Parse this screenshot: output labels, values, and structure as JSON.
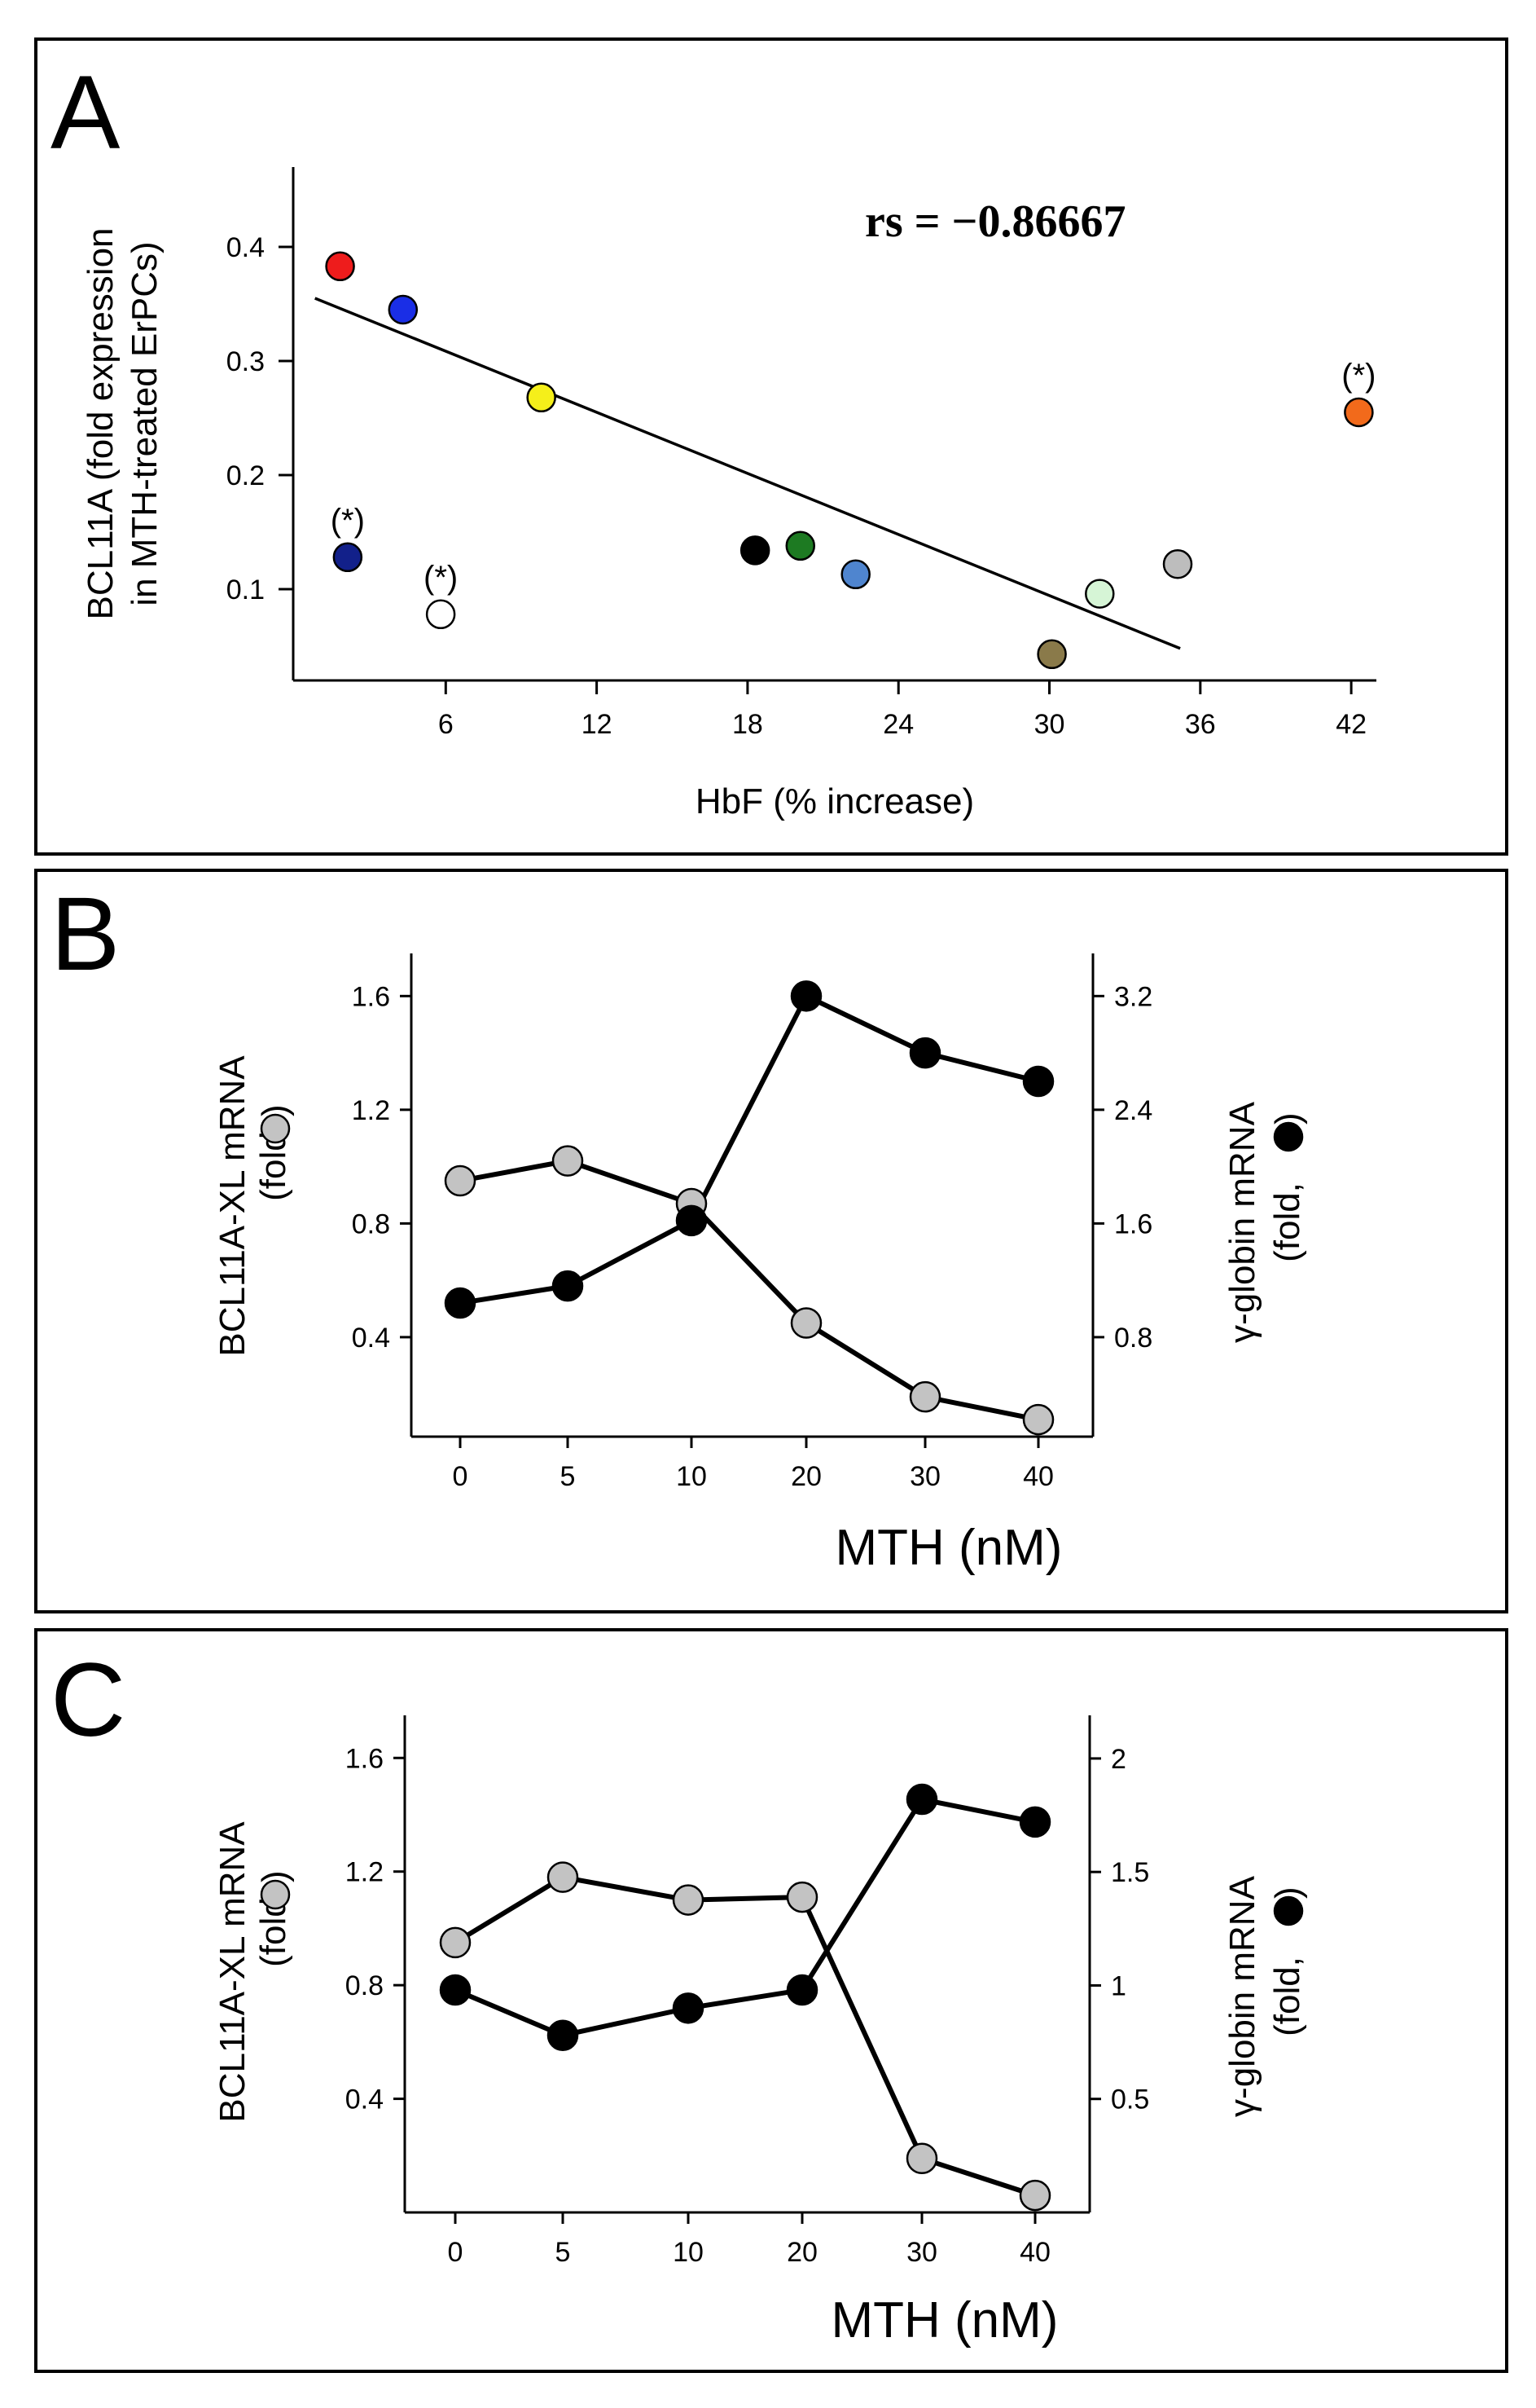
{
  "chart_data": [
    {
      "panel": "A",
      "type": "scatter",
      "xlabel": "HbF (% increase)",
      "ylabel_lines": [
        "BCL11A (fold expression",
        "in MTH-treated ErPCs)"
      ],
      "annotation": "rs = −0.86667",
      "xlim": [
        0,
        43
      ],
      "ylim": [
        0.02,
        0.47
      ],
      "xticks": [
        6,
        12,
        18,
        24,
        30,
        36,
        42
      ],
      "yticks": [
        0.1,
        0.2,
        0.3,
        0.4
      ],
      "ytick_labels": [
        "0.1",
        "0.2",
        "0.3",
        "0.4"
      ],
      "outlier_label": "(*)",
      "points": [
        {
          "x": 1.8,
          "y": 0.383,
          "color": "#ee1c1c",
          "outlier": false
        },
        {
          "x": 4.3,
          "y": 0.345,
          "color": "#1a2ee6",
          "outlier": false
        },
        {
          "x": 9.8,
          "y": 0.268,
          "color": "#f5ef1a",
          "outlier": false
        },
        {
          "x": 2.1,
          "y": 0.128,
          "color": "#12208a",
          "outlier": true
        },
        {
          "x": 5.8,
          "y": 0.078,
          "color": "#ffffff",
          "outlier": true
        },
        {
          "x": 18.3,
          "y": 0.134,
          "color": "#000000",
          "outlier": false
        },
        {
          "x": 20.1,
          "y": 0.138,
          "color": "#1d7a22",
          "outlier": false
        },
        {
          "x": 22.3,
          "y": 0.113,
          "color": "#4f85cf",
          "outlier": false
        },
        {
          "x": 30.1,
          "y": 0.043,
          "color": "#8a7a4a",
          "outlier": false
        },
        {
          "x": 32.0,
          "y": 0.096,
          "color": "#d6f5d6",
          "outlier": false
        },
        {
          "x": 35.1,
          "y": 0.122,
          "color": "#bdbdbd",
          "outlier": false
        },
        {
          "x": 42.3,
          "y": 0.255,
          "color": "#f26a1b",
          "outlier": true
        }
      ],
      "regression": {
        "x_start": 0.8,
        "y_start": 0.355,
        "x_end": 35.2,
        "y_end": 0.048
      }
    },
    {
      "panel": "B",
      "type": "line",
      "xlabel": "MTH (nM)",
      "ylabel_left": "BCL11A-XL mRNA",
      "ylabel_left_sub": "(fold,",
      "ylabel_right": "γ-globin mRNA",
      "ylabel_right_sub": "(fold,",
      "categories": [
        "0",
        "5",
        "10",
        "20",
        "30",
        "40"
      ],
      "left_ylim": [
        0.05,
        1.75
      ],
      "left_ticks": [
        0.4,
        0.8,
        1.2,
        1.6
      ],
      "left_tick_labels": [
        "0.4",
        "0.8",
        "1.2",
        "1.6"
      ],
      "right_ylim": [
        0.1,
        3.5
      ],
      "right_ticks": [
        0.8,
        1.6,
        2.4,
        3.2
      ],
      "right_tick_labels": [
        "0.8",
        "1.6",
        "2.4",
        "3.2"
      ],
      "series": [
        {
          "name": "BCL11A-XL mRNA",
          "axis": "left",
          "marker": "#c3c3c3",
          "values": [
            0.95,
            1.02,
            0.87,
            0.45,
            0.19,
            0.11
          ]
        },
        {
          "name": "γ-globin mRNA",
          "axis": "right",
          "marker": "#000000",
          "values": [
            1.04,
            1.16,
            1.62,
            3.2,
            2.8,
            2.6
          ]
        }
      ]
    },
    {
      "panel": "C",
      "type": "line",
      "xlabel": "MTH (nM)",
      "ylabel_left": "BCL11A-XL mRNA",
      "ylabel_left_sub": "(fold,",
      "ylabel_right": "γ-globin mRNA",
      "ylabel_right_sub": "(fold,",
      "categories": [
        "0",
        "5",
        "10",
        "20",
        "30",
        "40"
      ],
      "left_ylim": [
        0.0,
        1.75
      ],
      "left_ticks": [
        0.4,
        0.8,
        1.2,
        1.6
      ],
      "left_tick_labels": [
        "0.4",
        "0.8",
        "1.2",
        "1.6"
      ],
      "right_ylim": [
        0.0,
        2.19
      ],
      "right_ticks": [
        0.5,
        1,
        1.5,
        2
      ],
      "right_tick_labels": [
        "0.5",
        "1",
        "1.5",
        "2"
      ],
      "series": [
        {
          "name": "BCL11A-XL mRNA",
          "axis": "left",
          "marker": "#c3c3c3",
          "values": [
            0.95,
            1.18,
            1.1,
            1.11,
            0.19,
            0.06
          ]
        },
        {
          "name": "γ-globin mRNA",
          "axis": "right",
          "marker": "#000000",
          "values": [
            0.98,
            0.78,
            0.9,
            0.98,
            1.82,
            1.72
          ]
        }
      ]
    }
  ]
}
